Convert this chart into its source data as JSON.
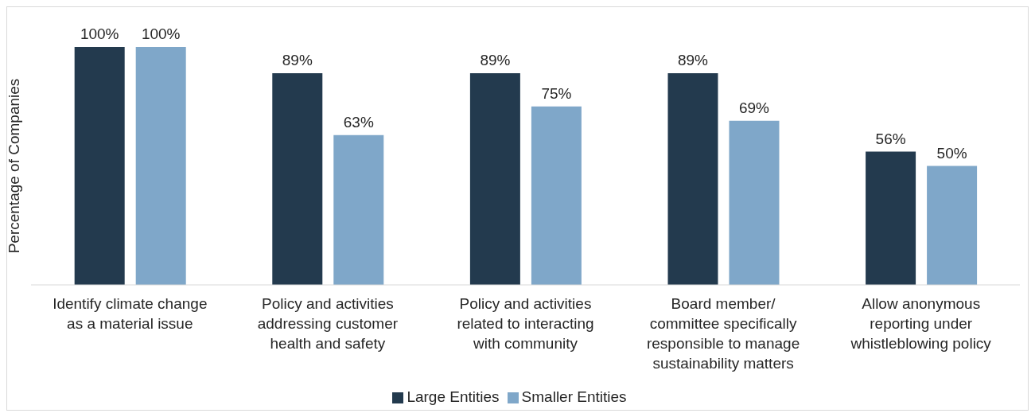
{
  "chart_data": {
    "type": "bar",
    "ylabel": "Percentage of Companies",
    "categories": [
      "Identify climate change\nas a material issue",
      "Policy and activities\naddressing customer\nhealth and safety",
      "Policy and activities\nrelated to interacting\nwith community",
      "Board member/\ncommittee specifically\nresponsible to manage\nsustainability matters",
      "Allow anonymous\nreporting under\nwhistleblowing policy"
    ],
    "series": [
      {
        "name": "Large Entities",
        "color": "#233a4e",
        "values": [
          100,
          89,
          89,
          89,
          56
        ],
        "value_labels": [
          "100%",
          "89%",
          "89%",
          "89%",
          "56%"
        ]
      },
      {
        "name": "Smaller Entities",
        "color": "#7fa7c9",
        "values": [
          100,
          63,
          75,
          69,
          50
        ],
        "value_labels": [
          "100%",
          "63%",
          "75%",
          "69%",
          "50%"
        ]
      }
    ],
    "legend": "bottom",
    "grid": false
  }
}
